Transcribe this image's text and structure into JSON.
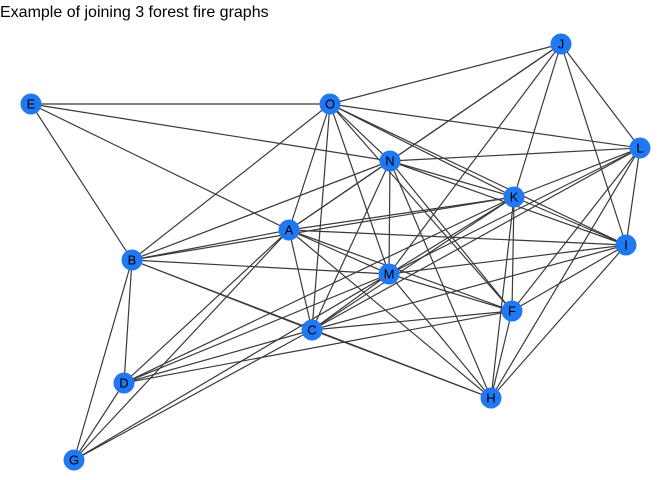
{
  "title": "Example of joining 3 forest fire graphs",
  "colors": {
    "node": "#2079f3",
    "edge": "#3a3a3a",
    "label": "#000000"
  },
  "nodes": [
    "A",
    "B",
    "C",
    "D",
    "E",
    "F",
    "G",
    "H",
    "I",
    "J",
    "K",
    "L",
    "M",
    "N",
    "O"
  ],
  "edges": [
    [
      "E",
      "O"
    ],
    [
      "E",
      "N"
    ],
    [
      "E",
      "B"
    ],
    [
      "E",
      "A"
    ],
    [
      "O",
      "J"
    ],
    [
      "O",
      "L"
    ],
    [
      "O",
      "N"
    ],
    [
      "O",
      "K"
    ],
    [
      "O",
      "I"
    ],
    [
      "O",
      "A"
    ],
    [
      "O",
      "B"
    ],
    [
      "O",
      "C"
    ],
    [
      "O",
      "M"
    ],
    [
      "O",
      "F"
    ],
    [
      "J",
      "N"
    ],
    [
      "J",
      "L"
    ],
    [
      "J",
      "K"
    ],
    [
      "J",
      "I"
    ],
    [
      "J",
      "M"
    ],
    [
      "J",
      "A"
    ],
    [
      "L",
      "N"
    ],
    [
      "L",
      "K"
    ],
    [
      "L",
      "I"
    ],
    [
      "L",
      "M"
    ],
    [
      "L",
      "F"
    ],
    [
      "L",
      "C"
    ],
    [
      "L",
      "H"
    ],
    [
      "N",
      "K"
    ],
    [
      "N",
      "I"
    ],
    [
      "N",
      "A"
    ],
    [
      "N",
      "B"
    ],
    [
      "N",
      "M"
    ],
    [
      "N",
      "C"
    ],
    [
      "N",
      "F"
    ],
    [
      "N",
      "H"
    ],
    [
      "K",
      "A"
    ],
    [
      "K",
      "I"
    ],
    [
      "K",
      "M"
    ],
    [
      "K",
      "F"
    ],
    [
      "K",
      "C"
    ],
    [
      "K",
      "H"
    ],
    [
      "K",
      "B"
    ],
    [
      "K",
      "D"
    ],
    [
      "A",
      "B"
    ],
    [
      "A",
      "I"
    ],
    [
      "A",
      "M"
    ],
    [
      "A",
      "C"
    ],
    [
      "A",
      "F"
    ],
    [
      "A",
      "H"
    ],
    [
      "A",
      "D"
    ],
    [
      "A",
      "G"
    ],
    [
      "B",
      "M"
    ],
    [
      "B",
      "C"
    ],
    [
      "B",
      "D"
    ],
    [
      "B",
      "G"
    ],
    [
      "B",
      "H"
    ],
    [
      "M",
      "I"
    ],
    [
      "M",
      "F"
    ],
    [
      "M",
      "C"
    ],
    [
      "M",
      "H"
    ],
    [
      "M",
      "D"
    ],
    [
      "M",
      "G"
    ],
    [
      "I",
      "C"
    ],
    [
      "I",
      "F"
    ],
    [
      "I",
      "H"
    ],
    [
      "F",
      "C"
    ],
    [
      "F",
      "D"
    ],
    [
      "F",
      "H"
    ],
    [
      "C",
      "D"
    ],
    [
      "C",
      "G"
    ],
    [
      "C",
      "H"
    ],
    [
      "D",
      "G"
    ]
  ]
}
